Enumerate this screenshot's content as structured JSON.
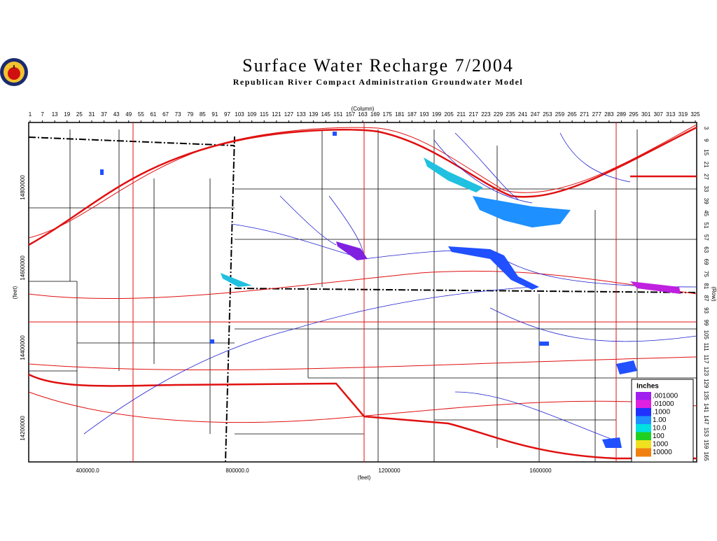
{
  "header": {
    "title": "Surface Water Recharge 7/2004",
    "subtitle": "Republican River Compact Administration Groundwater Model"
  },
  "axes": {
    "top": {
      "label": "(Column)",
      "ticks": [
        1,
        7,
        13,
        19,
        25,
        31,
        37,
        43,
        49,
        55,
        61,
        67,
        73,
        79,
        85,
        91,
        97,
        103,
        109,
        115,
        121,
        127,
        133,
        139,
        145,
        151,
        157,
        163,
        169,
        175,
        181,
        187,
        193,
        199,
        205,
        211,
        217,
        223,
        229,
        235,
        241,
        247,
        253,
        259,
        265,
        271,
        277,
        283,
        289,
        295,
        301,
        307,
        313,
        319,
        325
      ]
    },
    "right": {
      "label": "(Row)",
      "ticks": [
        3,
        9,
        15,
        21,
        27,
        33,
        39,
        45,
        51,
        57,
        63,
        69,
        75,
        81,
        87,
        93,
        99,
        105,
        111,
        117,
        123,
        129,
        135,
        141,
        147,
        153,
        159,
        165
      ]
    },
    "bottom": {
      "label": "(feet)",
      "ticks": [
        "400000.0",
        "800000.0",
        "1200000",
        "1600000"
      ]
    },
    "left": {
      "label": "(feet)",
      "ticks": [
        "14800000",
        "14600000",
        "14400000",
        "14200000"
      ]
    }
  },
  "legend": {
    "title": "Inches",
    "items": [
      ".001000",
      ".01000",
      ".1000",
      "1.00",
      "10.0",
      "100",
      "1000",
      "10000"
    ]
  }
}
